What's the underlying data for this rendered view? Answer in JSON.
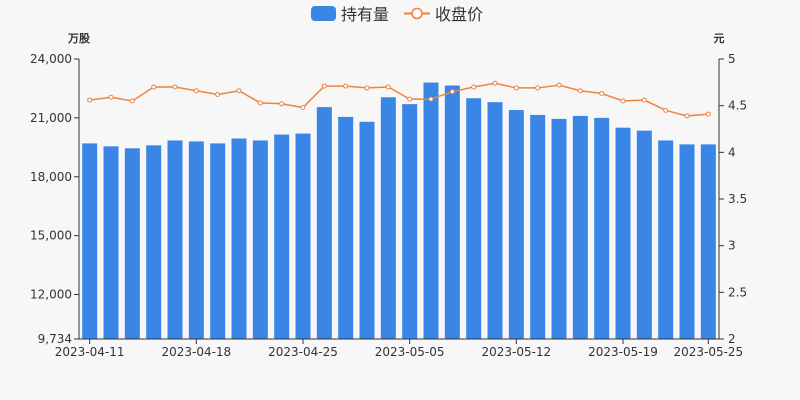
{
  "chart_data": {
    "type": "bar+line",
    "legend": {
      "position": "top-center",
      "items": [
        {
          "name": "持有量",
          "type": "bar",
          "color": "#3a86e6"
        },
        {
          "name": "收盘价",
          "type": "line",
          "color": "#f0833a"
        }
      ]
    },
    "left_axis": {
      "unit_label": "万股",
      "ylim": [
        9734,
        24000
      ],
      "ticks": [
        "9,734",
        "12,000",
        "15,000",
        "18,000",
        "21,000",
        "24,000"
      ],
      "tick_values": [
        9734,
        12000,
        15000,
        18000,
        21000,
        24000
      ]
    },
    "right_axis": {
      "unit_label": "元",
      "ylim": [
        2,
        5
      ],
      "ticks": [
        "2",
        "2.5",
        "3",
        "3.5",
        "4",
        "4.5",
        "5"
      ],
      "tick_values": [
        2,
        2.5,
        3,
        3.5,
        4,
        4.5,
        5
      ]
    },
    "x_tick_labels": [
      {
        "index": 0,
        "label": "2023-04-11"
      },
      {
        "index": 5,
        "label": "2023-04-18"
      },
      {
        "index": 10,
        "label": "2023-04-25"
      },
      {
        "index": 15,
        "label": "2023-05-05"
      },
      {
        "index": 20,
        "label": "2023-05-12"
      },
      {
        "index": 25,
        "label": "2023-05-19"
      },
      {
        "index": 29,
        "label": "2023-05-25"
      }
    ],
    "grid": false,
    "series": [
      {
        "name": "持有量",
        "type": "bar",
        "axis": "left",
        "values": [
          19700,
          19550,
          19450,
          19600,
          19850,
          19800,
          19700,
          19950,
          19850,
          20150,
          20200,
          21550,
          21050,
          20800,
          22050,
          21700,
          22800,
          22650,
          22000,
          21800,
          21400,
          21150,
          20950,
          21100,
          21000,
          20500,
          20350,
          19850,
          19650,
          19650
        ]
      },
      {
        "name": "收盘价",
        "type": "line",
        "axis": "right",
        "values": [
          4.56,
          4.59,
          4.55,
          4.7,
          4.7,
          4.66,
          4.62,
          4.66,
          4.53,
          4.52,
          4.48,
          4.71,
          4.71,
          4.69,
          4.7,
          4.57,
          4.57,
          4.65,
          4.7,
          4.74,
          4.69,
          4.69,
          4.72,
          4.66,
          4.63,
          4.55,
          4.56,
          4.45,
          4.39,
          4.41
        ]
      }
    ]
  }
}
